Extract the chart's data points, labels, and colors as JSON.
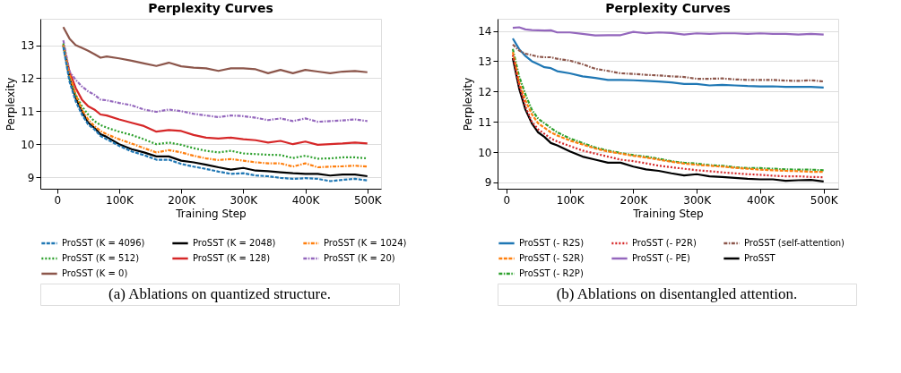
{
  "chart_data": [
    {
      "type": "line",
      "title": "Perplexity Curves",
      "xlabel": "Training Step",
      "ylabel": "Perplexity",
      "x": [
        10000,
        20000,
        30000,
        40000,
        50000,
        60000,
        70000,
        80000,
        100000,
        120000,
        140000,
        160000,
        180000,
        200000,
        220000,
        240000,
        260000,
        280000,
        300000,
        320000,
        340000,
        360000,
        380000,
        400000,
        420000,
        440000,
        460000,
        480000,
        500000
      ],
      "xlim": [
        -27000,
        522000
      ],
      "xticks": [
        0,
        {
          "value": 100000,
          "label": "100K"
        },
        {
          "value": 200000,
          "label": "200K"
        },
        {
          "value": 300000,
          "label": "300K"
        },
        {
          "value": 400000,
          "label": "400K"
        },
        {
          "value": 500000,
          "label": "500K"
        }
      ],
      "ylim": [
        8.65,
        13.8
      ],
      "yticks": [
        9,
        10,
        11,
        12,
        13
      ],
      "grid": "y",
      "legend": "bottom",
      "annotations": [
        "(a)  Ablations on quantized structure."
      ],
      "series": [
        {
          "name": "ProSST (K = 4096)",
          "color": "#1f77b4",
          "line_style": "dashed",
          "values": [
            12.95,
            11.9,
            11.3,
            10.9,
            10.6,
            10.45,
            10.25,
            10.15,
            9.95,
            9.78,
            9.67,
            9.53,
            9.53,
            9.4,
            9.32,
            9.25,
            9.17,
            9.1,
            9.12,
            9.05,
            9.03,
            8.98,
            8.95,
            8.97,
            8.95,
            8.88,
            8.92,
            8.95,
            8.9
          ]
        },
        {
          "name": "ProSST (K = 2048)",
          "color": "#000000",
          "line_style": "solid",
          "values": [
            13.0,
            12.0,
            11.4,
            11.0,
            10.65,
            10.5,
            10.3,
            10.22,
            10.0,
            9.85,
            9.75,
            9.63,
            9.63,
            9.5,
            9.45,
            9.38,
            9.3,
            9.23,
            9.28,
            9.2,
            9.18,
            9.15,
            9.12,
            9.1,
            9.1,
            9.05,
            9.08,
            9.08,
            9.03
          ]
        },
        {
          "name": "ProSST (K = 1024)",
          "color": "#ff7f0e",
          "line_style": "dashdot",
          "values": [
            13.0,
            12.1,
            11.5,
            11.05,
            10.75,
            10.55,
            10.4,
            10.3,
            10.15,
            10.02,
            9.88,
            9.75,
            9.82,
            9.75,
            9.65,
            9.57,
            9.52,
            9.55,
            9.5,
            9.45,
            9.42,
            9.42,
            9.32,
            9.42,
            9.3,
            9.32,
            9.33,
            9.35,
            9.32
          ]
        },
        {
          "name": "ProSST (K = 512)",
          "color": "#2ca02c",
          "line_style": "dotted",
          "values": [
            13.05,
            12.0,
            11.5,
            11.15,
            10.9,
            10.7,
            10.58,
            10.5,
            10.38,
            10.28,
            10.15,
            10.0,
            10.05,
            9.98,
            9.88,
            9.8,
            9.75,
            9.8,
            9.72,
            9.7,
            9.68,
            9.67,
            9.58,
            9.65,
            9.56,
            9.57,
            9.6,
            9.6,
            9.57
          ]
        },
        {
          "name": "ProSST (K = 128)",
          "color": "#d62728",
          "line_style": "solid",
          "values": [
            13.0,
            12.2,
            11.7,
            11.35,
            11.15,
            11.05,
            10.9,
            10.87,
            10.75,
            10.65,
            10.55,
            10.38,
            10.43,
            10.4,
            10.28,
            10.2,
            10.17,
            10.2,
            10.15,
            10.12,
            10.05,
            10.1,
            10.0,
            10.08,
            9.98,
            10.0,
            10.02,
            10.05,
            10.02
          ]
        },
        {
          "name": "ProSST (K = 20)",
          "color": "#9467bd",
          "line_style": "dashdot",
          "values": [
            13.15,
            12.2,
            11.95,
            11.75,
            11.6,
            11.5,
            11.35,
            11.33,
            11.25,
            11.18,
            11.05,
            10.98,
            11.05,
            11.0,
            10.92,
            10.87,
            10.82,
            10.87,
            10.85,
            10.8,
            10.73,
            10.78,
            10.7,
            10.78,
            10.68,
            10.7,
            10.72,
            10.75,
            10.7
          ]
        },
        {
          "name": "ProSST (K = 0)",
          "color": "#8c564b",
          "line_style": "solid",
          "values": [
            13.55,
            13.2,
            13.0,
            12.92,
            12.83,
            12.73,
            12.62,
            12.66,
            12.6,
            12.53,
            12.45,
            12.37,
            12.47,
            12.36,
            12.32,
            12.3,
            12.22,
            12.3,
            12.3,
            12.27,
            12.15,
            12.25,
            12.15,
            12.25,
            12.2,
            12.15,
            12.2,
            12.22,
            12.18
          ]
        }
      ]
    },
    {
      "type": "line",
      "title": "Perplexity Curves",
      "xlabel": "Training Step",
      "ylabel": "Perplexity",
      "x": [
        10000,
        20000,
        30000,
        40000,
        50000,
        60000,
        70000,
        80000,
        100000,
        120000,
        140000,
        160000,
        180000,
        200000,
        220000,
        240000,
        260000,
        280000,
        300000,
        320000,
        340000,
        360000,
        380000,
        400000,
        420000,
        440000,
        460000,
        480000,
        500000
      ],
      "xlim": [
        -14000,
        523000
      ],
      "xticks": [
        0,
        {
          "value": 100000,
          "label": "100K"
        },
        {
          "value": 200000,
          "label": "200K"
        },
        {
          "value": 300000,
          "label": "300K"
        },
        {
          "value": 400000,
          "label": "400K"
        },
        {
          "value": 500000,
          "label": "500K"
        }
      ],
      "ylim": [
        8.79,
        14.4
      ],
      "yticks": [
        9,
        10,
        11,
        12,
        13,
        14
      ],
      "grid": "y",
      "legend": "bottom",
      "annotations": [
        "(b)  Ablations on disentangled attention."
      ],
      "series": [
        {
          "name": "ProSST (- R2S)",
          "color": "#1f77b4",
          "line_style": "solid",
          "values": [
            13.75,
            13.4,
            13.17,
            13.0,
            12.9,
            12.8,
            12.77,
            12.67,
            12.6,
            12.5,
            12.45,
            12.38,
            12.38,
            12.37,
            12.35,
            12.33,
            12.3,
            12.25,
            12.25,
            12.2,
            12.22,
            12.2,
            12.18,
            12.17,
            12.17,
            12.15,
            12.15,
            12.15,
            12.13
          ]
        },
        {
          "name": "ProSST (- P2R)",
          "color": "#d62728",
          "line_style": "dotted",
          "values": [
            13.2,
            12.2,
            11.5,
            11.0,
            10.75,
            10.6,
            10.45,
            10.35,
            10.2,
            10.05,
            9.95,
            9.85,
            9.75,
            9.7,
            9.63,
            9.55,
            9.5,
            9.45,
            9.4,
            9.37,
            9.33,
            9.3,
            9.27,
            9.25,
            9.22,
            9.2,
            9.2,
            9.18,
            9.17
          ]
        },
        {
          "name": "ProSST (self-attention)",
          "color": "#8c564b",
          "line_style": "dashdot",
          "values": [
            13.55,
            13.35,
            13.25,
            13.2,
            13.15,
            13.13,
            13.13,
            13.08,
            13.02,
            12.9,
            12.75,
            12.68,
            12.6,
            12.58,
            12.55,
            12.53,
            12.5,
            12.48,
            12.42,
            12.42,
            12.43,
            12.4,
            12.38,
            12.38,
            12.38,
            12.36,
            12.35,
            12.37,
            12.33
          ]
        },
        {
          "name": "ProSST (- S2R)",
          "color": "#ff7f0e",
          "line_style": "dashed",
          "values": [
            13.3,
            12.3,
            11.7,
            11.25,
            10.95,
            10.8,
            10.65,
            10.55,
            10.38,
            10.25,
            10.12,
            10.02,
            9.95,
            9.88,
            9.82,
            9.75,
            9.68,
            9.62,
            9.58,
            9.55,
            9.52,
            9.48,
            9.45,
            9.42,
            9.4,
            9.38,
            9.37,
            9.35,
            9.35
          ]
        },
        {
          "name": "ProSST (- PE)",
          "color": "#9467bd",
          "line_style": "solid",
          "values": [
            14.1,
            14.12,
            14.05,
            14.03,
            14.02,
            14.01,
            14.02,
            13.95,
            13.95,
            13.9,
            13.85,
            13.86,
            13.86,
            13.97,
            13.92,
            13.95,
            13.93,
            13.88,
            13.92,
            13.9,
            13.92,
            13.92,
            13.9,
            13.92,
            13.9,
            13.9,
            13.88,
            13.9,
            13.88
          ]
        },
        {
          "name": "ProSST",
          "color": "#000000",
          "line_style": "solid",
          "values": [
            13.1,
            12.1,
            11.4,
            10.95,
            10.65,
            10.5,
            10.3,
            10.22,
            10.02,
            9.85,
            9.75,
            9.65,
            9.65,
            9.52,
            9.43,
            9.38,
            9.3,
            9.23,
            9.27,
            9.2,
            9.18,
            9.15,
            9.12,
            9.1,
            9.1,
            9.05,
            9.07,
            9.08,
            9.03
          ]
        },
        {
          "name": "ProSST (- R2P)",
          "color": "#2ca02c",
          "line_style": "dashdot",
          "values": [
            13.4,
            12.5,
            11.9,
            11.4,
            11.1,
            10.95,
            10.8,
            10.65,
            10.45,
            10.3,
            10.15,
            10.05,
            9.97,
            9.9,
            9.85,
            9.78,
            9.7,
            9.65,
            9.62,
            9.57,
            9.55,
            9.5,
            9.47,
            9.47,
            9.45,
            9.43,
            9.42,
            9.42,
            9.4
          ]
        }
      ]
    }
  ]
}
